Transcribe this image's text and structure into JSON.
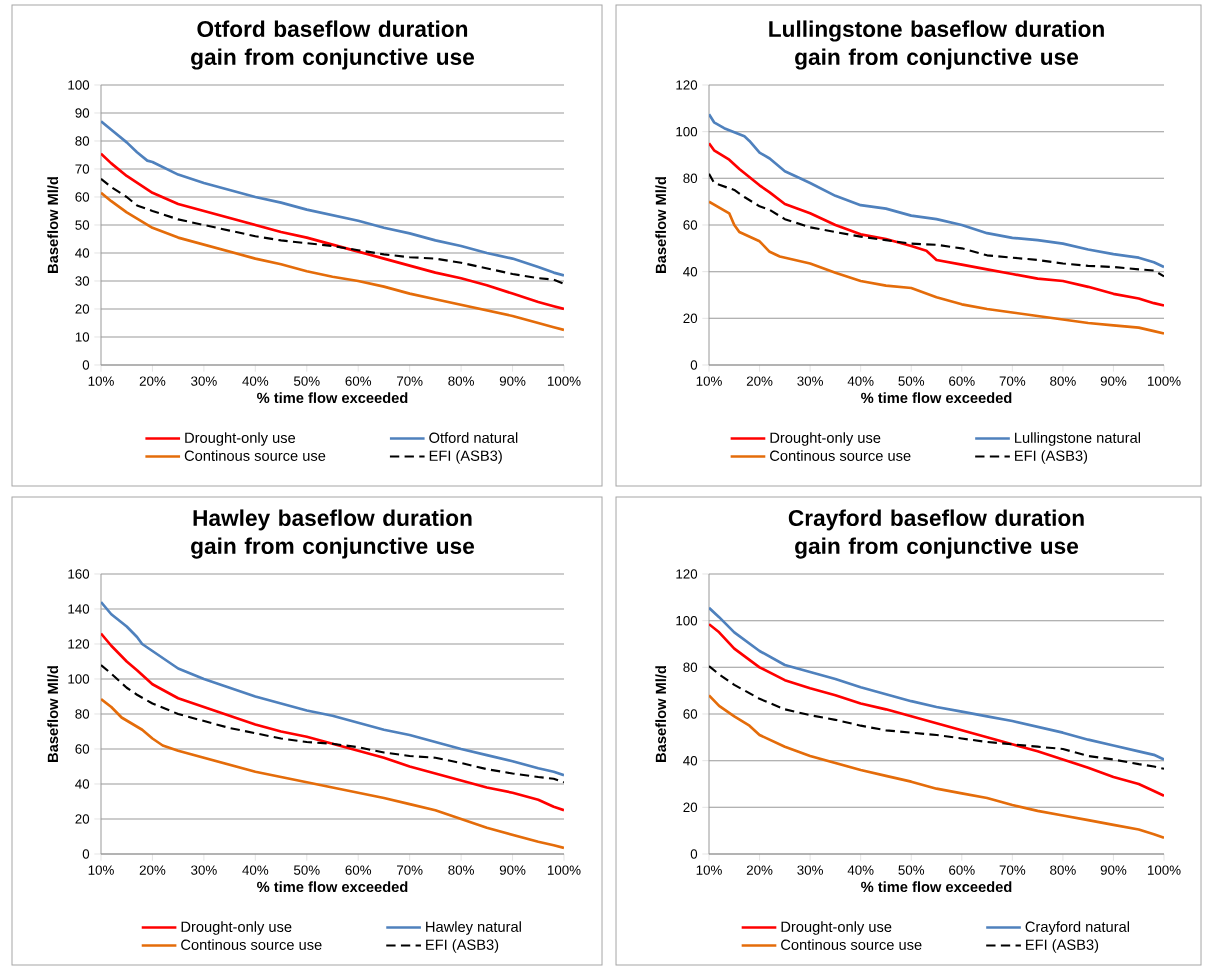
{
  "chart_data": [
    {
      "type": "line",
      "title": "Otford baseflow duration gain from conjunctive use",
      "xlabel": "% time flow exceeded",
      "ylabel": "Baseflow Ml/d",
      "xlim": [
        10,
        100
      ],
      "xticks": [
        {
          "value": 10,
          "label": "10%"
        },
        {
          "value": 20,
          "label": "20%"
        },
        {
          "value": 30,
          "label": "30%"
        },
        {
          "value": 40,
          "label": "40%"
        },
        {
          "value": 50,
          "label": "50%"
        },
        {
          "value": 60,
          "label": "60%"
        },
        {
          "value": 70,
          "label": "70%"
        },
        {
          "value": 80,
          "label": "80%"
        },
        {
          "value": 90,
          "label": "90%"
        },
        {
          "value": 100,
          "label": "100%"
        }
      ],
      "ylim": [
        0,
        100
      ],
      "yticks": [
        0,
        10,
        20,
        30,
        40,
        50,
        60,
        70,
        80,
        90,
        100
      ],
      "grid": "y",
      "legend": "bottom",
      "series": [
        {
          "name": "Drought-only use",
          "color": "#ff0000",
          "x": [
            10,
            12,
            15,
            20,
            25,
            30,
            35,
            40,
            45,
            50,
            55,
            60,
            65,
            70,
            75,
            80,
            85,
            90,
            95,
            98,
            100
          ],
          "values": [
            75.5,
            72,
            67.5,
            61.5,
            57.5,
            55,
            52.5,
            50,
            47.5,
            45.5,
            43,
            40.5,
            38,
            35.5,
            33,
            31,
            28.5,
            25.5,
            22.5,
            21,
            20
          ]
        },
        {
          "name": "Otford natural",
          "color": "#4f81bd",
          "x": [
            10,
            12,
            15,
            17,
            19,
            20,
            25,
            30,
            35,
            40,
            45,
            50,
            55,
            60,
            65,
            70,
            75,
            80,
            85,
            90,
            95,
            98,
            100
          ],
          "values": [
            87,
            84,
            79.5,
            76,
            73,
            72.5,
            68,
            65,
            62.5,
            60,
            58,
            55.5,
            53.5,
            51.5,
            49,
            47,
            44.5,
            42.5,
            40,
            38,
            35,
            33,
            32
          ]
        },
        {
          "name": "Continous source use",
          "color": "#e46c0a",
          "x": [
            10,
            12,
            15,
            20,
            25,
            30,
            35,
            40,
            45,
            50,
            55,
            60,
            65,
            70,
            75,
            80,
            85,
            90,
            95,
            98,
            100
          ],
          "values": [
            61.5,
            58.5,
            54.5,
            49,
            45.5,
            43,
            40.5,
            38,
            36,
            33.5,
            31.5,
            30,
            28,
            25.5,
            23.5,
            21.5,
            19.5,
            17.5,
            15,
            13.5,
            12.5
          ]
        },
        {
          "name": "EFI (ASB3)",
          "color": "#000000",
          "line_style": "dashed",
          "x": [
            10,
            12,
            15,
            17,
            20,
            25,
            30,
            35,
            40,
            45,
            50,
            55,
            60,
            65,
            70,
            75,
            80,
            85,
            90,
            95,
            98,
            100
          ],
          "values": [
            66.5,
            63.5,
            60,
            57,
            55,
            52,
            50,
            48,
            46,
            44.5,
            43.5,
            42.5,
            41,
            39.5,
            38.5,
            38,
            36.5,
            34.5,
            32.5,
            31,
            30.5,
            29
          ]
        }
      ]
    },
    {
      "type": "line",
      "title": "Lullingstone baseflow duration gain from conjunctive use",
      "xlabel": "% time flow exceeded",
      "ylabel": "Baseflow Ml/d",
      "xlim": [
        10,
        100
      ],
      "xticks": [
        {
          "value": 10,
          "label": "10%"
        },
        {
          "value": 20,
          "label": "20%"
        },
        {
          "value": 30,
          "label": "30%"
        },
        {
          "value": 40,
          "label": "40%"
        },
        {
          "value": 50,
          "label": "50%"
        },
        {
          "value": 60,
          "label": "60%"
        },
        {
          "value": 70,
          "label": "70%"
        },
        {
          "value": 80,
          "label": "80%"
        },
        {
          "value": 90,
          "label": "90%"
        },
        {
          "value": 100,
          "label": "100%"
        }
      ],
      "ylim": [
        0,
        120
      ],
      "yticks": [
        0,
        20,
        40,
        60,
        80,
        100,
        120
      ],
      "grid": "y",
      "legend": "bottom",
      "series": [
        {
          "name": "Drought-only use",
          "color": "#ff0000",
          "x": [
            10,
            11,
            14,
            16,
            20,
            22,
            25,
            30,
            35,
            40,
            45,
            50,
            53,
            55,
            60,
            65,
            70,
            75,
            80,
            85,
            90,
            95,
            98,
            100
          ],
          "values": [
            95,
            92,
            88,
            84,
            77,
            74,
            69,
            65,
            60,
            56,
            54,
            51,
            49,
            45,
            43,
            41,
            39,
            37,
            36,
            33.5,
            30.5,
            28.5,
            26.5,
            25.5
          ]
        },
        {
          "name": "Lullingstone natural",
          "color": "#4f81bd",
          "x": [
            10,
            11,
            13,
            17,
            18,
            20,
            22,
            25,
            28,
            30,
            35,
            40,
            45,
            50,
            55,
            60,
            65,
            70,
            75,
            80,
            85,
            90,
            95,
            98,
            100
          ],
          "values": [
            107.5,
            104,
            101.5,
            98,
            96,
            91,
            88.5,
            83,
            80,
            78,
            72.5,
            68.5,
            67,
            64,
            62.5,
            60,
            56.5,
            54.5,
            53.5,
            52,
            49.5,
            47.5,
            46,
            44,
            42
          ]
        },
        {
          "name": "Continous source use",
          "color": "#e46c0a",
          "x": [
            10,
            12,
            14,
            15,
            16,
            18,
            20,
            22,
            24,
            27,
            30,
            35,
            40,
            45,
            50,
            55,
            60,
            65,
            70,
            75,
            80,
            85,
            90,
            95,
            98,
            100
          ],
          "values": [
            70,
            67.5,
            65,
            60,
            57,
            55,
            53,
            48.5,
            46.5,
            45,
            43.5,
            39.5,
            36,
            34,
            33,
            29,
            26,
            24,
            22.5,
            21,
            19.5,
            18,
            17,
            16,
            14.5,
            13.5
          ]
        },
        {
          "name": "EFI (ASB3)",
          "color": "#000000",
          "line_style": "dashed",
          "x": [
            10,
            11,
            15,
            17,
            20,
            22,
            25,
            30,
            35,
            40,
            45,
            50,
            55,
            60,
            65,
            70,
            75,
            80,
            85,
            90,
            95,
            98,
            100
          ],
          "values": [
            82,
            78,
            75,
            72,
            68,
            66.5,
            62.5,
            59,
            57,
            55,
            53.5,
            52,
            51.5,
            50,
            47,
            46,
            45,
            43.5,
            42.5,
            42,
            41,
            40.5,
            38
          ]
        }
      ]
    },
    {
      "type": "line",
      "title": "Hawley baseflow duration gain from conjunctive use",
      "xlabel": "% time flow exceeded",
      "ylabel": "Baseflow Ml/d",
      "xlim": [
        10,
        100
      ],
      "xticks": [
        {
          "value": 10,
          "label": "10%"
        },
        {
          "value": 20,
          "label": "20%"
        },
        {
          "value": 30,
          "label": "30%"
        },
        {
          "value": 40,
          "label": "40%"
        },
        {
          "value": 50,
          "label": "50%"
        },
        {
          "value": 60,
          "label": "60%"
        },
        {
          "value": 70,
          "label": "70%"
        },
        {
          "value": 80,
          "label": "80%"
        },
        {
          "value": 90,
          "label": "90%"
        },
        {
          "value": 100,
          "label": "100%"
        }
      ],
      "ylim": [
        0,
        160
      ],
      "yticks": [
        0,
        20,
        40,
        60,
        80,
        100,
        120,
        140,
        160
      ],
      "grid": "y",
      "legend": "bottom",
      "series": [
        {
          "name": "Drought-only use",
          "color": "#ff0000",
          "x": [
            10,
            12,
            15,
            17,
            20,
            25,
            30,
            35,
            40,
            45,
            50,
            55,
            60,
            65,
            70,
            75,
            80,
            85,
            90,
            95,
            98,
            100
          ],
          "values": [
            126,
            119,
            110,
            105,
            97,
            89,
            84,
            79,
            74,
            70,
            67,
            63,
            59,
            55,
            50,
            46,
            42,
            38,
            35,
            31,
            27,
            25
          ]
        },
        {
          "name": "Hawley natural",
          "color": "#4f81bd",
          "x": [
            10,
            12,
            15,
            17,
            18,
            20,
            25,
            30,
            35,
            40,
            45,
            50,
            55,
            60,
            65,
            70,
            75,
            80,
            85,
            90,
            95,
            98,
            100
          ],
          "values": [
            144,
            137,
            130,
            124,
            120,
            116,
            106,
            100,
            95,
            90,
            86,
            82,
            79,
            75,
            71,
            68,
            64,
            60,
            56.5,
            53,
            49,
            47,
            45
          ]
        },
        {
          "name": "Continous source use",
          "color": "#e46c0a",
          "x": [
            10,
            12,
            14,
            18,
            20,
            22,
            25,
            30,
            35,
            40,
            45,
            50,
            55,
            60,
            65,
            70,
            75,
            80,
            85,
            90,
            95,
            98,
            100
          ],
          "values": [
            88.5,
            84,
            78,
            71,
            66,
            62,
            59,
            55,
            51,
            47,
            44,
            41,
            38,
            35,
            32,
            28.5,
            25,
            20,
            15,
            11,
            7,
            5,
            3.5
          ]
        },
        {
          "name": "EFI (ASB3)",
          "color": "#000000",
          "line_style": "dashed",
          "x": [
            10,
            12,
            15,
            17,
            20,
            25,
            30,
            35,
            40,
            45,
            50,
            55,
            60,
            65,
            70,
            75,
            80,
            85,
            90,
            95,
            98,
            100
          ],
          "values": [
            108,
            103,
            95,
            91,
            86,
            80,
            76,
            72,
            69,
            66,
            64,
            63,
            61,
            58,
            56,
            55,
            52,
            48.5,
            46,
            44,
            43,
            41
          ]
        }
      ]
    },
    {
      "type": "line",
      "title": "Crayford baseflow duration gain from conjunctive use",
      "xlabel": "% time flow exceeded",
      "ylabel": "Baseflow Ml/d",
      "xlim": [
        10,
        100
      ],
      "xticks": [
        {
          "value": 10,
          "label": "10%"
        },
        {
          "value": 20,
          "label": "20%"
        },
        {
          "value": 30,
          "label": "30%"
        },
        {
          "value": 40,
          "label": "40%"
        },
        {
          "value": 50,
          "label": "50%"
        },
        {
          "value": 60,
          "label": "60%"
        },
        {
          "value": 70,
          "label": "70%"
        },
        {
          "value": 80,
          "label": "80%"
        },
        {
          "value": 90,
          "label": "90%"
        },
        {
          "value": 100,
          "label": "100%"
        }
      ],
      "ylim": [
        0,
        120
      ],
      "yticks": [
        0,
        20,
        40,
        60,
        80,
        100,
        120
      ],
      "grid": "y",
      "legend": "bottom",
      "series": [
        {
          "name": "Drought-only use",
          "color": "#ff0000",
          "x": [
            10,
            12,
            15,
            20,
            25,
            30,
            35,
            40,
            45,
            50,
            55,
            60,
            65,
            70,
            75,
            80,
            85,
            90,
            95,
            98,
            100
          ],
          "values": [
            98.5,
            95,
            88,
            80,
            74.5,
            71,
            68,
            64.5,
            62,
            59,
            56,
            53,
            50,
            47,
            44,
            40.5,
            37,
            33,
            30,
            27,
            25
          ]
        },
        {
          "name": "Crayford natural",
          "color": "#4f81bd",
          "x": [
            10,
            12,
            15,
            20,
            25,
            30,
            35,
            40,
            45,
            50,
            55,
            60,
            65,
            70,
            75,
            80,
            85,
            90,
            95,
            98,
            100
          ],
          "values": [
            105.5,
            101.5,
            95,
            87,
            81,
            78,
            75,
            71.5,
            68.5,
            65.5,
            63,
            61,
            59,
            57,
            54.5,
            52,
            49,
            46.5,
            44,
            42.5,
            40.5
          ]
        },
        {
          "name": "Continous source use",
          "color": "#e46c0a",
          "x": [
            10,
            12,
            15,
            18,
            20,
            25,
            30,
            35,
            40,
            45,
            50,
            55,
            60,
            65,
            70,
            75,
            80,
            85,
            90,
            95,
            98,
            100
          ],
          "values": [
            68,
            63.5,
            59,
            55,
            51,
            46,
            42,
            39,
            36,
            33.5,
            31,
            28,
            26,
            24,
            21,
            18.5,
            16.5,
            14.5,
            12.5,
            10.5,
            8.5,
            7
          ]
        },
        {
          "name": "EFI (ASB3)",
          "color": "#000000",
          "line_style": "dashed",
          "x": [
            10,
            12,
            15,
            20,
            25,
            30,
            35,
            40,
            45,
            50,
            55,
            60,
            65,
            70,
            75,
            80,
            85,
            90,
            95,
            98,
            100
          ],
          "values": [
            80.5,
            77,
            72.5,
            66.5,
            62,
            59.5,
            57.5,
            55,
            53,
            52,
            51,
            49.5,
            48,
            47,
            46,
            45,
            42,
            40.5,
            38.5,
            37.5,
            36.5
          ]
        }
      ]
    }
  ]
}
